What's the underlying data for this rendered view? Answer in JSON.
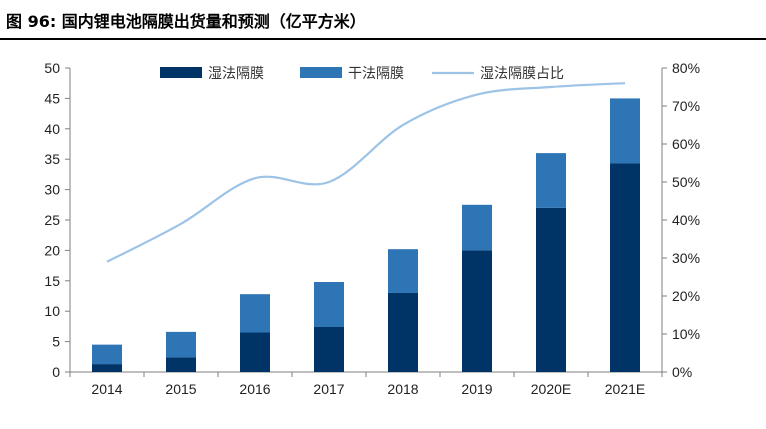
{
  "title": "图 96:  国内锂电池隔膜出货量和预测（亿平方米）",
  "chart_data": {
    "type": "bar",
    "stacked": true,
    "categories": [
      "2014",
      "2015",
      "2016",
      "2017",
      "2018",
      "2019",
      "2020E",
      "2021E"
    ],
    "series": [
      {
        "name": "湿法隔膜",
        "type": "bar",
        "axis": "left",
        "color": "#003366",
        "values": [
          1.3,
          2.4,
          6.5,
          7.4,
          13.0,
          20.0,
          27.0,
          34.3
        ]
      },
      {
        "name": "干法隔膜",
        "type": "bar",
        "axis": "left",
        "color": "#2e75b6",
        "values": [
          3.2,
          4.2,
          6.3,
          7.4,
          7.2,
          7.5,
          9.0,
          10.7
        ]
      },
      {
        "name": "湿法隔膜占比",
        "type": "line",
        "axis": "right",
        "color": "#9dc3e6",
        "values": [
          0.29,
          0.39,
          0.51,
          0.5,
          0.65,
          0.73,
          0.75,
          0.76
        ]
      }
    ],
    "y_left": {
      "min": 0,
      "max": 50,
      "step": 5,
      "ticks": [
        "0",
        "5",
        "10",
        "15",
        "20",
        "25",
        "30",
        "35",
        "40",
        "45",
        "50"
      ]
    },
    "y_right": {
      "min": 0,
      "max": 0.8,
      "step": 0.1,
      "ticks": [
        "0%",
        "10%",
        "20%",
        "30%",
        "40%",
        "50%",
        "60%",
        "70%",
        "80%"
      ]
    },
    "legend_position": "top",
    "grid": false
  }
}
